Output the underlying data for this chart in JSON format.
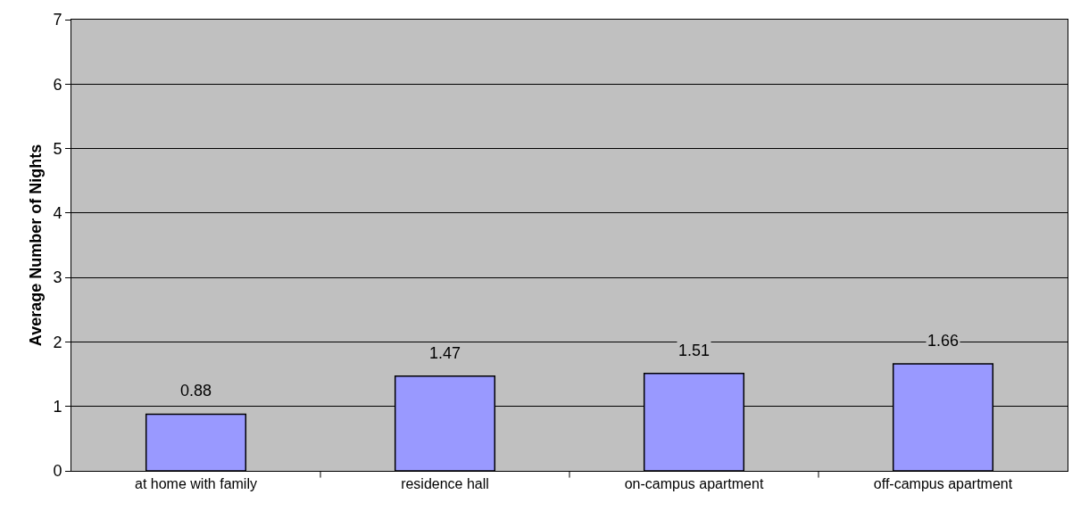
{
  "chart_data": {
    "type": "bar",
    "ylabel": "Average Number of Nights",
    "categories": [
      "at home with family",
      "residence hall",
      "on-campus apartment",
      "off-campus apartment"
    ],
    "values": [
      0.88,
      1.47,
      1.51,
      1.66
    ],
    "color": "#9999ff",
    "ylim": [
      0,
      7
    ],
    "yticks": [
      0,
      1,
      2,
      3,
      4,
      5,
      6,
      7
    ],
    "grid": "y",
    "data_labels": true
  }
}
